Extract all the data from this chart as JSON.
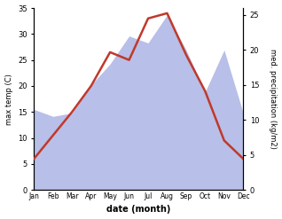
{
  "months": [
    "Jan",
    "Feb",
    "Mar",
    "Apr",
    "May",
    "Jun",
    "Jul",
    "Aug",
    "Sep",
    "Oct",
    "Nov",
    "Dec"
  ],
  "month_indices": [
    1,
    2,
    3,
    4,
    5,
    6,
    7,
    8,
    9,
    10,
    11,
    12
  ],
  "temperature": [
    6,
    10.5,
    15,
    20,
    26.5,
    25,
    33,
    34,
    26,
    19,
    9.5,
    6
  ],
  "precipitation": [
    11.5,
    10.5,
    11,
    15,
    18,
    22,
    21,
    25,
    20,
    14,
    20,
    11
  ],
  "temp_color": "#c0392b",
  "precip_fill_color": "#b8bfe8",
  "temp_ylim": [
    0,
    35
  ],
  "precip_ylim": [
    0,
    26
  ],
  "temp_yticks": [
    0,
    5,
    10,
    15,
    20,
    25,
    30,
    35
  ],
  "precip_yticks": [
    0,
    5,
    10,
    15,
    20,
    25
  ],
  "xlabel": "date (month)",
  "ylabel_left": "max temp (C)",
  "ylabel_right": "med. precipitation (kg/m2)",
  "background_color": "#ffffff",
  "line_width": 1.8
}
